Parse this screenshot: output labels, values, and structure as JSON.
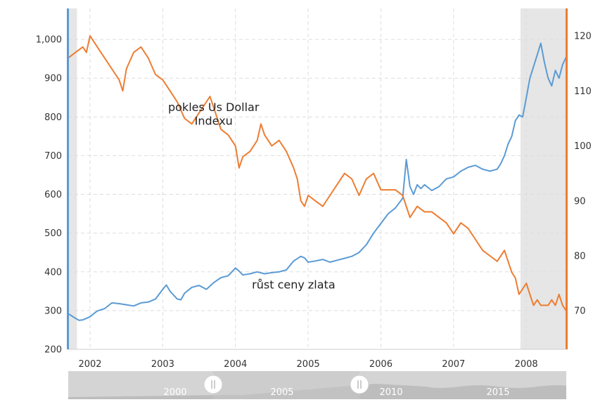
{
  "chart_data": {
    "type": "line",
    "x_axis": {
      "ticks": [
        "2002",
        "2003",
        "2004",
        "2005",
        "2006",
        "2007",
        "2008"
      ],
      "range": [
        2001.7,
        2008.55
      ]
    },
    "y_left": {
      "ticks": [
        "200",
        "300",
        "400",
        "500",
        "600",
        "700",
        "800",
        "900",
        "1,000"
      ],
      "range": [
        200,
        1080
      ]
    },
    "y_right": {
      "ticks": [
        "70",
        "80",
        "90",
        "100",
        "110",
        "120"
      ],
      "range": [
        63,
        125
      ]
    },
    "grid": true,
    "shaded_regions": [
      [
        2001.7,
        2001.82
      ],
      [
        2007.92,
        2008.55
      ]
    ],
    "annotations": [
      {
        "text": "pokles Us Dollar",
        "at": [
          2003.7,
          815
        ]
      },
      {
        "text": "Indexu",
        "at": [
          2003.7,
          780
        ]
      },
      {
        "text": "růst ceny zlata",
        "at": [
          2004.8,
          357
        ]
      }
    ],
    "series": [
      {
        "axis": "left",
        "color": "#5b9bd5",
        "x": [
          2001.7,
          2001.75,
          2001.8,
          2001.85,
          2001.9,
          2001.95,
          2002.0,
          2002.05,
          2002.1,
          2002.2,
          2002.3,
          2002.4,
          2002.5,
          2002.6,
          2002.7,
          2002.8,
          2002.9,
          2003.0,
          2003.05,
          2003.1,
          2003.2,
          2003.25,
          2003.3,
          2003.4,
          2003.5,
          2003.6,
          2003.7,
          2003.8,
          2003.9,
          2004.0,
          2004.05,
          2004.1,
          2004.2,
          2004.3,
          2004.4,
          2004.5,
          2004.6,
          2004.7,
          2004.8,
          2004.9,
          2004.95,
          2005.0,
          2005.1,
          2005.2,
          2005.3,
          2005.4,
          2005.5,
          2005.6,
          2005.7,
          2005.8,
          2005.9,
          2006.0,
          2006.1,
          2006.2,
          2006.3,
          2006.35,
          2006.4,
          2006.45,
          2006.5,
          2006.55,
          2006.6,
          2006.7,
          2006.8,
          2006.9,
          2007.0,
          2007.1,
          2007.2,
          2007.3,
          2007.4,
          2007.5,
          2007.6,
          2007.65,
          2007.7,
          2007.75,
          2007.8,
          2007.85,
          2007.9,
          2007.95,
          2008.0,
          2008.05,
          2008.1,
          2008.15,
          2008.2,
          2008.25,
          2008.3,
          2008.35,
          2008.4,
          2008.45,
          2008.5,
          2008.55
        ],
        "values": [
          292,
          286,
          280,
          275,
          276,
          280,
          284,
          292,
          299,
          305,
          320,
          318,
          315,
          312,
          320,
          322,
          330,
          355,
          366,
          350,
          330,
          328,
          345,
          360,
          365,
          355,
          372,
          385,
          390,
          410,
          402,
          392,
          395,
          400,
          395,
          398,
          400,
          405,
          428,
          440,
          436,
          425,
          428,
          432,
          425,
          430,
          435,
          440,
          450,
          470,
          500,
          525,
          550,
          565,
          590,
          690,
          620,
          600,
          625,
          615,
          625,
          610,
          620,
          640,
          645,
          660,
          670,
          675,
          665,
          660,
          665,
          680,
          700,
          730,
          750,
          790,
          805,
          800,
          850,
          900,
          930,
          960,
          990,
          940,
          900,
          880,
          920,
          900,
          935,
          955
        ]
      },
      {
        "axis": "right",
        "color": "#ed7d31",
        "x": [
          2001.7,
          2001.8,
          2001.9,
          2001.95,
          2002.0,
          2002.05,
          2002.1,
          2002.2,
          2002.3,
          2002.4,
          2002.45,
          2002.5,
          2002.6,
          2002.7,
          2002.8,
          2002.9,
          2003.0,
          2003.1,
          2003.2,
          2003.3,
          2003.4,
          2003.5,
          2003.6,
          2003.65,
          2003.7,
          2003.8,
          2003.9,
          2004.0,
          2004.05,
          2004.1,
          2004.2,
          2004.3,
          2004.35,
          2004.4,
          2004.5,
          2004.6,
          2004.7,
          2004.8,
          2004.85,
          2004.9,
          2004.95,
          2005.0,
          2005.1,
          2005.2,
          2005.3,
          2005.4,
          2005.5,
          2005.6,
          2005.7,
          2005.8,
          2005.9,
          2006.0,
          2006.1,
          2006.2,
          2006.3,
          2006.4,
          2006.5,
          2006.6,
          2006.7,
          2006.8,
          2006.9,
          2007.0,
          2007.1,
          2007.2,
          2007.3,
          2007.4,
          2007.5,
          2007.6,
          2007.7,
          2007.8,
          2007.85,
          2007.9,
          2007.95,
          2008.0,
          2008.05,
          2008.1,
          2008.15,
          2008.2,
          2008.25,
          2008.3,
          2008.35,
          2008.4,
          2008.45,
          2008.5,
          2008.55
        ],
        "values": [
          116,
          117,
          118,
          117,
          120,
          119,
          118,
          116,
          114,
          112,
          110,
          114,
          117,
          118,
          116,
          113,
          112,
          110,
          108,
          105,
          104,
          106,
          108,
          109,
          107,
          103,
          102,
          100,
          96,
          98,
          99,
          101,
          104,
          102,
          100,
          101,
          99,
          96,
          94,
          90,
          89,
          91,
          90,
          89,
          91,
          93,
          95,
          94,
          91,
          94,
          95,
          92,
          92,
          92,
          91,
          87,
          89,
          88,
          88,
          87,
          86,
          84,
          86,
          85,
          83,
          81,
          80,
          79,
          81,
          77,
          76,
          73,
          74,
          75,
          73,
          71,
          72,
          71,
          71,
          71,
          72,
          71,
          73,
          71,
          70
        ]
      }
    ]
  },
  "navigator": {
    "labels": [
      "2000",
      "2005",
      "2010",
      "2015"
    ]
  },
  "colors": {
    "gold": "#5b9bd5",
    "dollar": "#ed7d31",
    "grid": "#dddddd",
    "shade": "#e6e6e6"
  }
}
